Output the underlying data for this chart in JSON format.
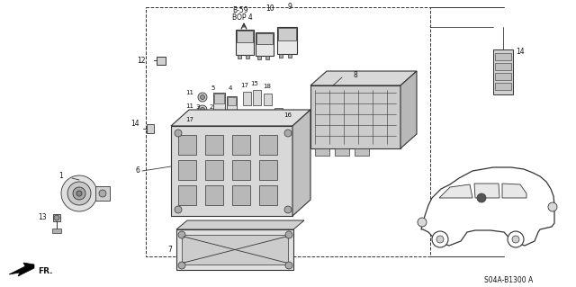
{
  "bg_color": "#ffffff",
  "part_code": "S04A-B1300 A",
  "diagram_color": "#333333",
  "label_color": "#111111",
  "b59_label": "B-59\nBOP 4",
  "fr_label": "FR."
}
